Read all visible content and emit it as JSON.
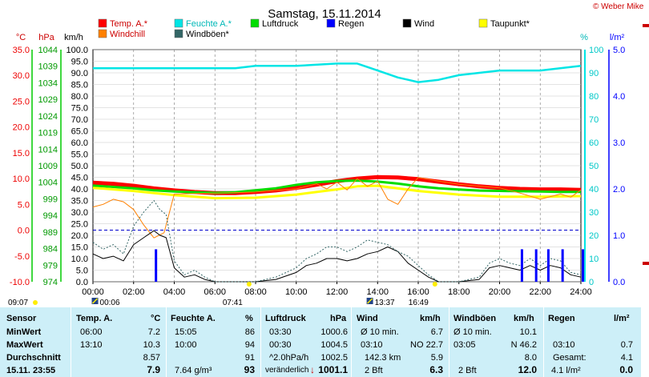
{
  "title": "Samstag, 15.11.2014",
  "copyright": "© Weber Mike",
  "legend": [
    {
      "label": "Temp. A.*",
      "color": "#ff0000"
    },
    {
      "label": "Feuchte A.*",
      "color": "#00e5e5"
    },
    {
      "label": "Luftdruck",
      "color": "#00dd00"
    },
    {
      "label": "Regen",
      "color": "#0000ff"
    },
    {
      "label": "Wind",
      "color": "#000000"
    },
    {
      "label": "Taupunkt*",
      "color": "#ffff00"
    },
    {
      "label": "Windchill",
      "color": "#ff8000"
    },
    {
      "label": "Windböen*",
      "color": "#336666"
    }
  ],
  "chart_data": {
    "type": "line",
    "x_ticks": [
      "00:00",
      "02:00",
      "04:00",
      "06:00",
      "08:00",
      "10:00",
      "12:00",
      "14:00",
      "16:00",
      "18:00",
      "20:00",
      "22:00",
      "24:00"
    ],
    "axes": {
      "temp": {
        "label": "°C",
        "ticks": [
          "35.0",
          "30.0",
          "25.0",
          "20.0",
          "15.0",
          "10.0",
          "5.0",
          "0.0",
          "-5.0",
          "-10.0"
        ],
        "range": [
          -10,
          35
        ]
      },
      "pressure": {
        "label": "hPa",
        "ticks": [
          "1044",
          "1039",
          "1034",
          "1029",
          "1024",
          "1019",
          "1014",
          "1009",
          "1004",
          "999",
          "994",
          "989",
          "984",
          "979",
          "974"
        ],
        "range": [
          974,
          1044
        ]
      },
      "wind": {
        "label": "km/h",
        "ticks": [
          "100.0",
          "95.0",
          "90.0",
          "85.0",
          "80.0",
          "75.0",
          "70.0",
          "65.0",
          "60.0",
          "55.0",
          "50.0",
          "45.0",
          "40.0",
          "35.0",
          "30.0",
          "25.0",
          "20.0",
          "15.0",
          "10.0",
          "5.0",
          "0.0"
        ],
        "range": [
          0,
          100
        ]
      },
      "humidity": {
        "label": "%",
        "ticks": [
          "100",
          "90",
          "80",
          "70",
          "60",
          "50",
          "40",
          "30",
          "20",
          "10",
          "0"
        ],
        "range": [
          0,
          100
        ]
      },
      "rain": {
        "label": "l/m²",
        "ticks": [
          "5.0",
          "4.0",
          "3.0",
          "2.0",
          "1.0",
          "0.0"
        ],
        "range": [
          0,
          5
        ]
      }
    },
    "series": [
      {
        "name": "Temp. A.*",
        "axis": "temp",
        "color": "#ff0000",
        "x": [
          0,
          1,
          2,
          3,
          4,
          5,
          6,
          7,
          8,
          9,
          10,
          11,
          12,
          13,
          14,
          15,
          16,
          17,
          18,
          19,
          20,
          21,
          22,
          23,
          24
        ],
        "y": [
          9.2,
          9.0,
          8.6,
          8.1,
          7.7,
          7.4,
          7.2,
          7.2,
          7.4,
          7.7,
          8.2,
          8.8,
          9.5,
          10.0,
          10.3,
          10.2,
          9.9,
          9.4,
          8.9,
          8.5,
          8.2,
          8.0,
          7.9,
          7.9,
          7.8
        ]
      },
      {
        "name": "Feuchte A.*",
        "axis": "humidity",
        "color": "#00e5e5",
        "x": [
          0,
          2,
          4,
          6,
          7,
          8,
          10,
          12,
          13,
          14,
          15,
          16,
          17,
          18,
          20,
          22,
          24
        ],
        "y": [
          92,
          92,
          92,
          92,
          92,
          93,
          93,
          94,
          94,
          91,
          88,
          86,
          87,
          89,
          91,
          91,
          93
        ]
      },
      {
        "name": "Luftdruck",
        "axis": "pressure",
        "color": "#00dd00",
        "x": [
          0,
          1,
          2,
          3,
          4,
          5,
          6,
          7,
          8,
          9,
          10,
          11,
          12,
          13,
          14,
          15,
          16,
          17,
          18,
          19,
          20,
          21,
          22,
          23,
          24
        ],
        "y": [
          1003.0,
          1002.6,
          1002.2,
          1001.6,
          1001.2,
          1001.0,
          1000.8,
          1001.0,
          1001.6,
          1002.2,
          1003.2,
          1004.0,
          1004.4,
          1004.5,
          1004.2,
          1003.6,
          1002.8,
          1002.2,
          1001.8,
          1001.5,
          1001.4,
          1001.3,
          1001.2,
          1001.1,
          1001.1
        ]
      },
      {
        "name": "Taupunkt*",
        "axis": "temp",
        "color": "#ffff00",
        "x": [
          0,
          2,
          4,
          6,
          8,
          10,
          12,
          13,
          14,
          16,
          18,
          20,
          22,
          24
        ],
        "y": [
          8.2,
          7.6,
          6.8,
          6.2,
          6.3,
          6.9,
          7.9,
          8.5,
          8.6,
          7.6,
          6.9,
          6.5,
          6.5,
          6.6
        ]
      },
      {
        "name": "Windchill",
        "axis": "temp",
        "color": "#ff8000",
        "x": [
          0,
          0.5,
          1,
          1.5,
          2,
          2.5,
          3,
          3.5,
          4,
          6,
          8,
          10,
          11,
          11.5,
          12,
          12.5,
          13,
          13.5,
          14,
          14.5,
          15,
          15.5,
          16,
          17,
          18,
          20,
          21,
          22,
          23,
          23.5,
          24
        ],
        "y": [
          4.5,
          5.0,
          6.0,
          5.5,
          4.0,
          1.0,
          -1.5,
          -0.5,
          7.0,
          7.2,
          7.4,
          8.0,
          9.0,
          8.0,
          9.3,
          7.8,
          10.0,
          8.5,
          9.5,
          6.0,
          5.0,
          8.0,
          10.2,
          9.5,
          8.9,
          8.2,
          7.2,
          6.0,
          7.0,
          6.4,
          7.8
        ]
      },
      {
        "name": "Wind",
        "axis": "wind",
        "color": "#000000",
        "x": [
          0,
          0.5,
          1,
          1.5,
          2,
          2.5,
          3,
          3.3,
          3.6,
          4,
          4.5,
          5,
          5.5,
          6,
          7,
          8,
          9,
          10,
          10.5,
          11,
          11.5,
          12,
          12.5,
          13,
          13.5,
          14,
          14.5,
          15,
          15.5,
          16,
          16.5,
          17,
          18,
          19,
          19.5,
          20,
          20.5,
          21,
          21.5,
          22,
          22.5,
          23,
          23.5,
          24
        ],
        "y": [
          12,
          10,
          11,
          9,
          16,
          19,
          22,
          20,
          19,
          6,
          2,
          3,
          1,
          0,
          0,
          0,
          1,
          4,
          7,
          8,
          10,
          10,
          9,
          10,
          12,
          13,
          15,
          13,
          8,
          5,
          2,
          0,
          0,
          1,
          6,
          7,
          6,
          5,
          7,
          5,
          7,
          6,
          3,
          2
        ]
      },
      {
        "name": "Windböen*",
        "axis": "wind",
        "color": "#336666",
        "x": [
          0,
          0.5,
          1,
          1.5,
          2,
          2.5,
          3,
          3.3,
          3.6,
          4,
          4.5,
          5,
          5.5,
          6,
          7,
          8,
          9,
          10,
          10.5,
          11,
          11.5,
          12,
          12.5,
          13,
          13.5,
          14,
          14.5,
          15,
          15.5,
          16,
          16.5,
          17,
          18,
          19,
          19.5,
          20,
          20.5,
          21,
          21.5,
          22,
          22.5,
          23,
          23.5,
          24
        ],
        "y": [
          17,
          14,
          16,
          12,
          24,
          30,
          35,
          31,
          29,
          9,
          3,
          5,
          2,
          0,
          0,
          0,
          2,
          6,
          10,
          12,
          15,
          15,
          13,
          15,
          18,
          17,
          16,
          13,
          11,
          7,
          3,
          0,
          0,
          2,
          8,
          10,
          8,
          7,
          10,
          7,
          10,
          9,
          4,
          3
        ]
      },
      {
        "name": "Regen",
        "axis": "rain",
        "color": "#0000ff",
        "type": "bar",
        "x": [
          3.1,
          21.1,
          21.8,
          22.4,
          23.1,
          24.1
        ],
        "y": [
          0.7,
          0.7,
          0.7,
          0.7,
          0.7,
          0.7
        ]
      }
    ],
    "reference_lines": [
      {
        "axis": "temp",
        "y": 0.0,
        "style": "dashed",
        "color": "#0000cc"
      }
    ],
    "time_markers": [
      {
        "label": "09:07",
        "icon": "sunrise-icon",
        "x": 0
      },
      {
        "label": "00:06",
        "icon": "moonrise-icon",
        "x": 0.1
      },
      {
        "label": "07:41",
        "icon": "sun-icon",
        "x": 7.68
      },
      {
        "label": "13:37",
        "icon": "moonset-icon",
        "x": 13.62
      },
      {
        "label": "16:49",
        "icon": "sunset-icon",
        "x": 16.82
      }
    ]
  },
  "table": {
    "headers": [
      "Sensor",
      "Temp. A.",
      "°C",
      "Feuchte A.",
      "%",
      "Luftdruck",
      "hPa",
      "Wind",
      "km/h",
      "Windböen",
      "km/h",
      "Regen",
      "l/m²"
    ],
    "rows": [
      {
        "label": "MinWert",
        "temp_time": "06:00",
        "temp_val": "7.2",
        "hum_time": "15:05",
        "hum_val": "86",
        "press_time": "03:30",
        "press_val": "1000.6",
        "wind_label": "Ø 10 min.",
        "wind_val": "6.7",
        "gust_label": "Ø 10 min.",
        "gust_val": "10.1",
        "rain_label": "",
        "rain_val": ""
      },
      {
        "label": "MaxWert",
        "temp_time": "13:10",
        "temp_val": "10.3",
        "hum_time": "10:00",
        "hum_val": "94",
        "press_time": "00:30",
        "press_val": "1004.5",
        "wind_label": "03:10",
        "wind_extra": "NO 22.7",
        "gust_label": "03:05",
        "gust_extra": "N 46.2",
        "rain_label": "03:10",
        "rain_val": "0.7"
      },
      {
        "label": "Durchschnitt",
        "temp_time": "",
        "temp_val": "8.57",
        "hum_time": "",
        "hum_val": "91",
        "press_time": "^2.0hPa/h",
        "press_val": "1002.5",
        "wind_label": "142.3 km",
        "wind_val": "5.9",
        "gust_label": "",
        "gust_val": "8.0",
        "rain_label": "Gesamt:",
        "rain_val": "4.1"
      },
      {
        "label": "15.11. 23:55",
        "temp_time": "",
        "temp_val": "7.9",
        "hum_time": "7.64 g/m³",
        "hum_val": "93",
        "press_time": "veränderlich",
        "press_val": "1001.1",
        "wind_label": "2 Bft",
        "wind_val": "6.3",
        "gust_label": "2 Bft",
        "gust_val": "12.0",
        "rain_label": "4.1 l/m²",
        "rain_val": "0.0"
      }
    ]
  }
}
